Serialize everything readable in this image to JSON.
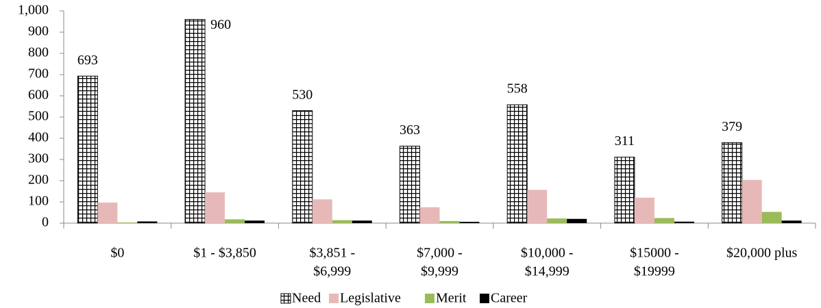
{
  "chart_data": {
    "type": "bar",
    "categories": [
      [
        "$0"
      ],
      [
        "$1   -  $3,850"
      ],
      [
        "$3,851  -",
        "$6,999"
      ],
      [
        "$7,000  -",
        "$9,999"
      ],
      [
        "$10,000  -",
        "$14,999"
      ],
      [
        "$15000  -",
        "$19999"
      ],
      [
        "$20,000 plus"
      ]
    ],
    "series": [
      {
        "name": "Need",
        "color": "#ffffff",
        "pattern": "grid",
        "data_labels": true,
        "values": [
          693,
          960,
          530,
          363,
          558,
          311,
          379
        ]
      },
      {
        "name": "Legislative",
        "color": "#e6b9b8",
        "values": [
          97,
          145,
          112,
          75,
          157,
          120,
          204
        ]
      },
      {
        "name": "Merit",
        "color": "#9bbb59",
        "values": [
          3,
          18,
          14,
          10,
          22,
          24,
          53
        ]
      },
      {
        "name": "Career",
        "color": "#000000",
        "values": [
          8,
          12,
          12,
          6,
          20,
          7,
          12
        ]
      }
    ],
    "ylim": [
      0,
      1000
    ],
    "yticks": [
      0,
      100,
      200,
      300,
      400,
      500,
      600,
      700,
      800,
      900,
      {
        "value": 1000,
        "label": "1,000"
      }
    ],
    "legend": "bottom"
  }
}
